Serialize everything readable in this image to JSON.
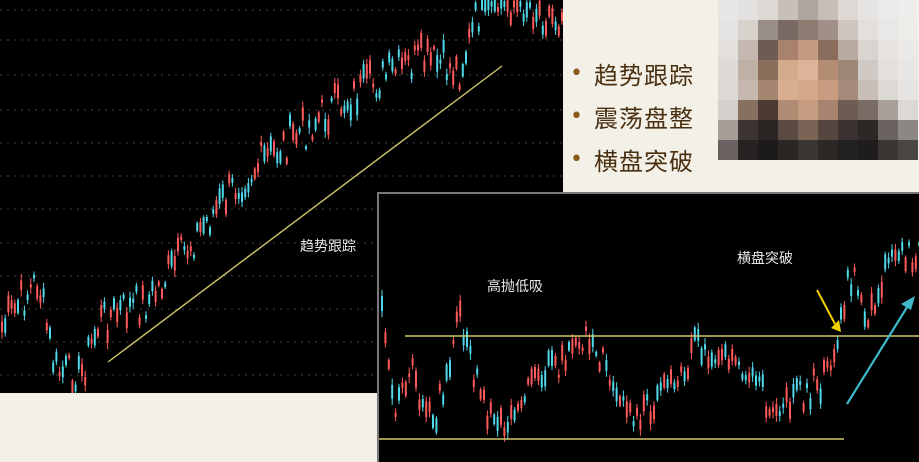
{
  "left_chart": {
    "trend_label": "趋势跟踪"
  },
  "right_chart": {
    "range_label": "高抛低吸",
    "breakout_label": "横盘突破"
  },
  "bullets": [
    "趋势跟踪",
    "震荡盘整",
    "横盘突破"
  ],
  "colors": {
    "up_candle": "#ff5a5a",
    "down_candle": "#4fd8ea",
    "trend_line": "#cfc76a",
    "arrow_yellow": "#f0d000",
    "arrow_cyan": "#3fb9c9",
    "bullet_text": "#4a2f10"
  },
  "icons": [
    "bullet-dot",
    "blurred-face"
  ]
}
